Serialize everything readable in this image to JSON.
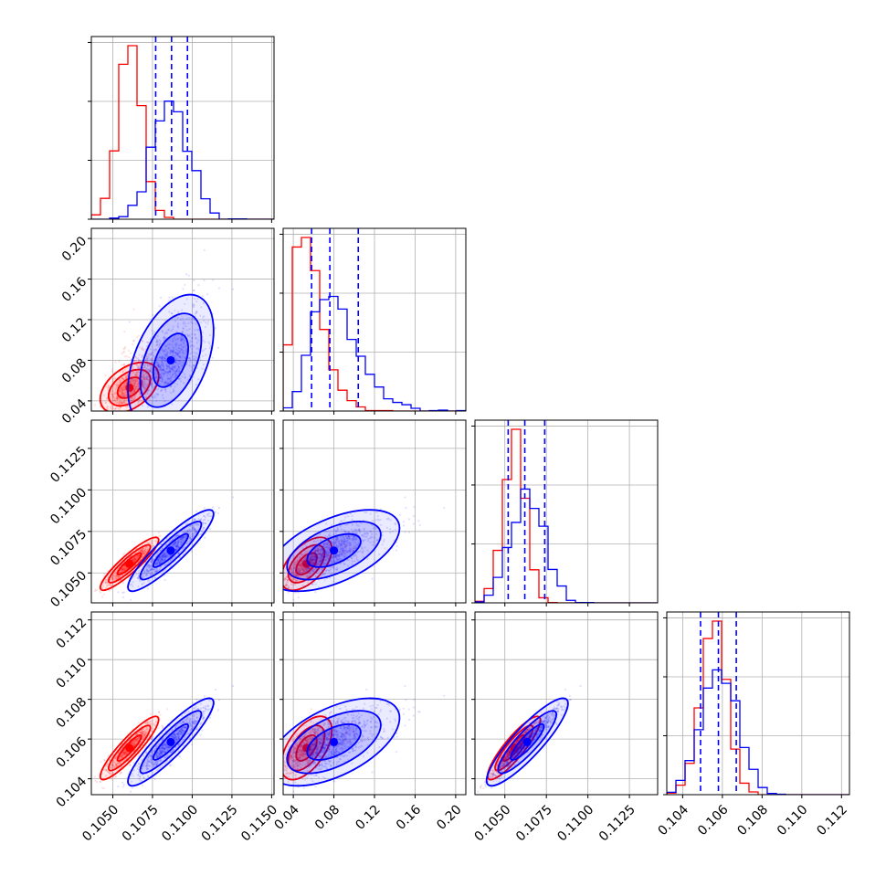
{
  "chart_data": {
    "type": "corner",
    "grid": true,
    "colors": {
      "series_a": "#ff0000",
      "series_b": "#0000ff",
      "quantile_lines": "#0000ff"
    },
    "series": [
      {
        "color": "#ff0000",
        "mean": [
          0.10605,
          0.053,
          0.10555,
          0.10555
        ],
        "std": [
          0.00075,
          0.0085,
          0.00065,
          0.00065
        ]
      },
      {
        "color": "#0000ff",
        "mean": [
          0.10865,
          0.08,
          0.10635,
          0.10585
        ],
        "std": [
          0.0011,
          0.022,
          0.001,
          0.0009
        ]
      }
    ],
    "correlations": [
      [
        1,
        0.45,
        0.9,
        0.9
      ],
      [
        0.45,
        1,
        0.55,
        0.55
      ],
      [
        0.9,
        0.55,
        1,
        0.88
      ],
      [
        0.9,
        0.55,
        0.88,
        1
      ]
    ],
    "quantiles": [
      [
        0.1077,
        0.1087,
        0.1097
      ],
      [
        0.058,
        0.076,
        0.104
      ],
      [
        0.1052,
        0.1062,
        0.1074
      ],
      [
        0.1049,
        0.1058,
        0.1067
      ]
    ],
    "ranges": [
      [
        0.10365,
        0.11515
      ],
      [
        0.03,
        0.21
      ],
      [
        0.1032,
        0.1142
      ],
      [
        0.1032,
        0.1124
      ]
    ],
    "ticks": [
      [
        0.105,
        0.1075,
        0.11,
        0.1125,
        0.115
      ],
      [
        0.04,
        0.08,
        0.12,
        0.16,
        0.2
      ],
      [
        0.105,
        0.1075,
        0.11,
        0.1125
      ],
      [
        0.104,
        0.106,
        0.108,
        0.11,
        0.112
      ]
    ],
    "tick_labels": [
      [
        "0.1050",
        "0.1075",
        "0.1100",
        "0.1125",
        "0.1150"
      ],
      [
        "0.04",
        "0.08",
        "0.12",
        "0.16",
        "0.20"
      ],
      [
        "0.1050",
        "0.1075",
        "0.1100",
        "0.1125"
      ],
      [
        "0.104",
        "0.106",
        "0.108",
        "0.110",
        "0.112"
      ]
    ]
  }
}
